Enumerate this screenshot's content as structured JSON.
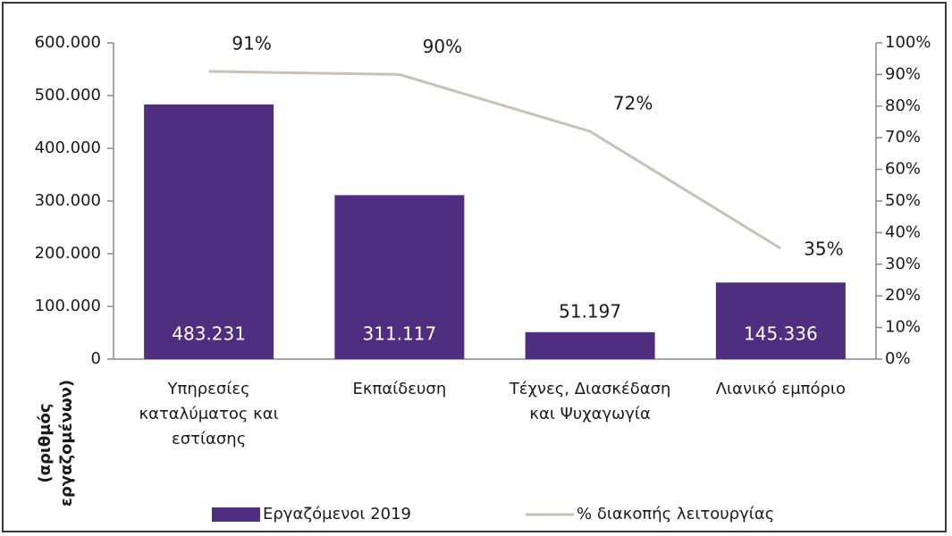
{
  "chart_data": {
    "type": "bar",
    "y_label": "(αριθμός εργαζομένων)",
    "categories": [
      "Υπηρεσίες καταλύματος και εστίασης",
      "Εκπαίδευση",
      "Τέχνες, Διασκέδαση και Ψυχαγωγία",
      "Λιανικό εμπόριο"
    ],
    "series": [
      {
        "name": "Εργαζόμενοι 2019",
        "color": "#4f2d7f",
        "values": [
          483231,
          311117,
          51197,
          145336
        ],
        "value_labels": [
          "483.231",
          "311.117",
          "51.197",
          "145.336"
        ]
      },
      {
        "name": "% διακοπής λειτουργίας",
        "type": "line",
        "axis": "y2",
        "color": "#c9c0b6",
        "values": [
          91,
          90,
          72,
          35
        ],
        "value_labels": [
          "91%",
          "90%",
          "72%",
          "35%"
        ]
      }
    ],
    "ylim": [
      0,
      600000
    ],
    "yticks": [
      0,
      {
        "value": 100000,
        "label": "100.000"
      },
      {
        "value": 200000,
        "label": "200.000"
      },
      {
        "value": 300000,
        "label": "300.000"
      },
      {
        "value": 400000,
        "label": "400.000"
      },
      {
        "value": 500000,
        "label": "500.000"
      },
      {
        "value": 600000,
        "label": "600.000"
      }
    ],
    "y2lim": [
      0,
      100
    ],
    "y2ticks": [
      {
        "value": 0,
        "label": "0%"
      },
      {
        "value": 10,
        "label": "10%"
      },
      {
        "value": 20,
        "label": "20%"
      },
      {
        "value": 30,
        "label": "30%"
      },
      {
        "value": 40,
        "label": "40%"
      },
      {
        "value": 50,
        "label": "50%"
      },
      {
        "value": 60,
        "label": "60%"
      },
      {
        "value": 70,
        "label": "70%"
      },
      {
        "value": 80,
        "label": "80%"
      },
      {
        "value": 90,
        "label": "90%"
      },
      {
        "value": 100,
        "label": "100%"
      }
    ],
    "grid": false,
    "legend": "bottom"
  }
}
